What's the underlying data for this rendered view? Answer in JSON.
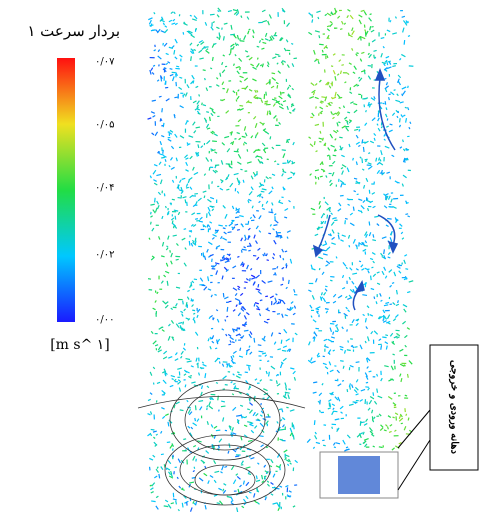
{
  "colorbar": {
    "title": "بردار سرعت ۱",
    "tick_labels": [
      "۰/۰۷",
      "۰/۰۵",
      "۰/۰۴",
      "۰/۰۲",
      "۰/۰۰"
    ],
    "unit": "[m s^ ۱]"
  },
  "callout": {
    "label": "دهانه ورودی و خروجی"
  }
}
